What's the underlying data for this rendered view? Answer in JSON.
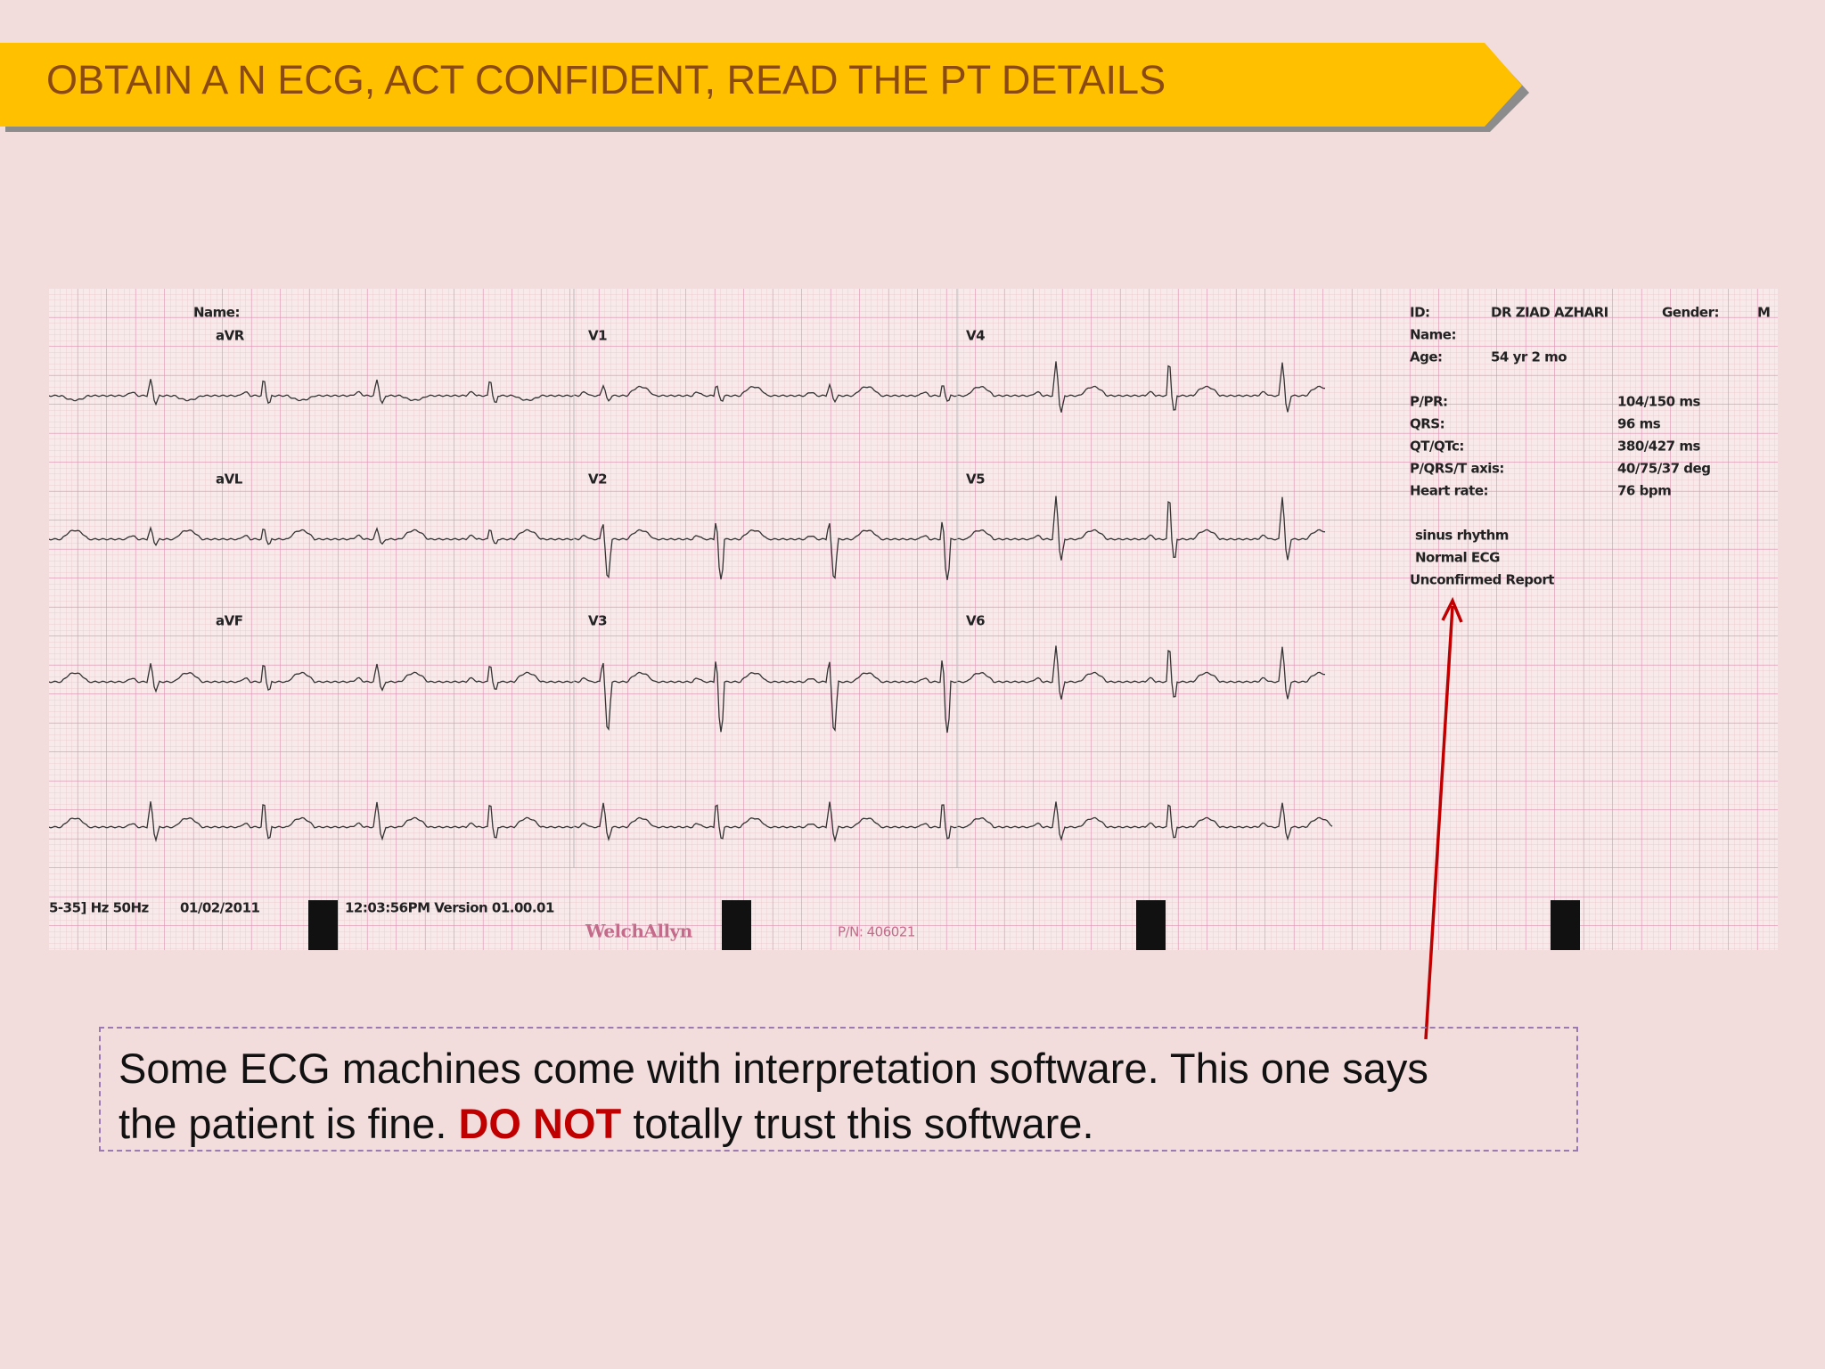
{
  "header": {
    "title": "OBTAIN A N ECG, ACT CONFIDENT, READ THE PT DETAILS"
  },
  "ecg": {
    "name_top": "Name:",
    "leads": [
      "aVR",
      "V1",
      "V4",
      "aVL",
      "V2",
      "V5",
      "aVF",
      "V3",
      "V6"
    ],
    "info": {
      "id_label": "ID:",
      "id_value": "DR ZIAD AZHARI",
      "gender_label": "Gender:",
      "gender_value": "M",
      "name_label": "Name:",
      "age_label": "Age:",
      "age_value": "54 yr 2 mo"
    },
    "measurements": [
      [
        "P/PR:",
        "104/150 ms"
      ],
      [
        "QRS:",
        "96 ms"
      ],
      [
        "QT/QTc:",
        "380/427 ms"
      ],
      [
        "P/QRS/T axis:",
        "40/75/37 deg"
      ],
      [
        "Heart rate:",
        "76 bpm"
      ]
    ],
    "interpretation": [
      "sinus rhythm",
      "Normal ECG",
      "Unconfirmed Report"
    ],
    "footer": {
      "filter": "5-35] Hz 50Hz",
      "date": "01/02/2011",
      "time": "12:03:56PM  Version 01.00.01",
      "brand": "WelchAllyn",
      "part_number": "P/N: 406021"
    }
  },
  "note": {
    "line1": "Some ECG machines come with interpretation software. This one says",
    "line2_start": "the patient is fine.",
    "emphasis": "DO NOT",
    "line2_end": "totally trust this software."
  }
}
